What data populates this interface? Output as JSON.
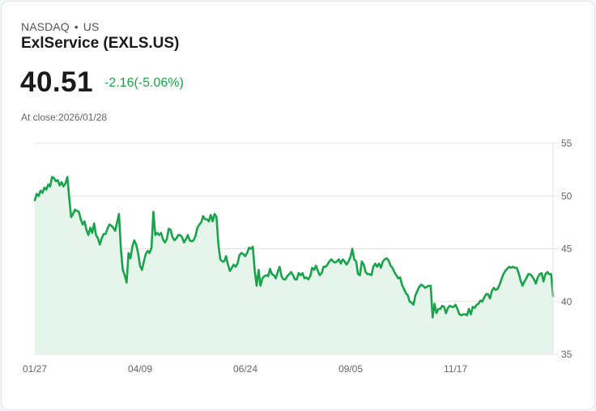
{
  "header": {
    "exchange": "NASDAQ",
    "separator": "•",
    "country": "US",
    "name": "ExlService (EXLS.US)",
    "price": "40.51",
    "change": "-2.16(-5.06%)",
    "close_label": "At close:2026/01/28"
  },
  "colors": {
    "line": "#1aa34a",
    "fill": "#e6f5ec",
    "grid": "#e3e3e3",
    "text": "#666666"
  },
  "chart_data": {
    "type": "area",
    "title": "ExlService (EXLS.US)",
    "xlabel": "",
    "ylabel": "",
    "ylim": [
      35,
      55
    ],
    "y_ticks": [
      "55",
      "50",
      "45",
      "40",
      "35"
    ],
    "x_ticks": [
      "01/27",
      "04/09",
      "06/24",
      "09/05",
      "11/17"
    ],
    "grid": true,
    "y_axis_position": "right",
    "series": [
      {
        "name": "Close",
        "values": [
          49.6,
          50.2,
          50.0,
          50.5,
          50.3,
          50.8,
          50.6,
          51.1,
          50.9,
          51.8,
          51.7,
          51.4,
          51.5,
          51.0,
          51.3,
          50.9,
          51.2,
          51.8,
          49.8,
          48.0,
          48.3,
          48.7,
          48.6,
          48.5,
          47.8,
          47.3,
          47.6,
          46.8,
          46.3,
          47.0,
          46.5,
          47.4,
          46.3,
          46.0,
          45.4,
          46.0,
          46.4,
          46.4,
          46.9,
          47.3,
          47.2,
          47.0,
          46.7,
          47.5,
          48.3,
          45.0,
          43.0,
          42.5,
          41.8,
          44.6,
          44.1,
          45.2,
          45.8,
          45.4,
          44.6,
          43.4,
          43.0,
          43.8,
          44.5,
          44.8,
          44.6,
          45.1,
          48.5,
          46.3,
          46.5,
          46.3,
          46.5,
          45.9,
          45.6,
          45.9,
          46.9,
          46.8,
          46.1,
          45.8,
          46.0,
          46.3,
          46.3,
          46.1,
          45.6,
          45.9,
          46.3,
          45.8,
          45.7,
          45.8,
          46.2,
          47.0,
          47.3,
          47.5,
          48.1,
          47.8,
          47.8,
          47.6,
          48.2,
          47.6,
          48.3,
          48.0,
          45.4,
          44.0,
          43.8,
          43.8,
          44.3,
          43.5,
          42.9,
          43.2,
          43.5,
          43.3,
          43.6,
          44.4,
          44.6,
          44.5,
          44.3,
          44.6,
          45.1,
          45.0,
          45.2,
          42.9,
          41.5,
          43.0,
          41.5,
          42.2,
          42.4,
          42.5,
          42.4,
          43.1,
          42.6,
          42.5,
          42.2,
          42.8,
          43.3,
          42.4,
          42.1,
          42.1,
          42.4,
          42.6,
          42.8,
          42.5,
          42.1,
          42.1,
          42.7,
          42.5,
          42.7,
          42.2,
          42.3,
          42.1,
          42.4,
          43.2,
          43.0,
          43.4,
          42.9,
          42.5,
          42.7,
          43.3,
          43.3,
          43.5,
          43.8,
          44.0,
          43.8,
          43.7,
          43.8,
          44.0,
          43.6,
          44.0,
          43.8,
          43.5,
          43.8,
          44.2,
          45.0,
          44.0,
          43.8,
          42.6,
          42.5,
          43.8,
          43.5,
          42.8,
          42.6,
          42.6,
          42.5,
          43.3,
          43.6,
          43.3,
          43.6,
          43.2,
          43.8,
          44.0,
          44.1,
          43.9,
          43.4,
          43.2,
          42.8,
          42.5,
          42.2,
          42.3,
          41.6,
          41.2,
          40.8,
          40.6,
          40.0,
          39.9,
          39.7,
          40.6,
          41.0,
          41.4,
          41.6,
          41.5,
          41.3,
          41.4,
          41.5,
          41.5,
          38.5,
          39.8,
          38.9,
          39.3,
          39.3,
          39.6,
          39.5,
          38.9,
          39.4,
          39.6,
          39.5,
          39.5,
          39.7,
          39.3,
          38.8,
          38.7,
          38.8,
          38.8,
          38.7,
          39.3,
          38.8,
          39.5,
          39.4,
          39.7,
          39.8,
          40.1,
          40.0,
          40.4,
          40.7,
          40.7,
          40.3,
          41.0,
          41.3,
          41.1,
          41.2,
          41.6,
          42.1,
          42.6,
          42.9,
          43.1,
          43.3,
          43.2,
          43.3,
          43.2,
          43.2,
          42.7,
          42.0,
          41.5,
          41.9,
          42.2,
          42.6,
          42.6,
          42.4,
          42.1,
          41.7,
          42.3,
          42.6,
          42.7,
          41.9,
          42.6,
          42.8,
          42.6,
          42.6,
          40.5
        ]
      }
    ]
  }
}
